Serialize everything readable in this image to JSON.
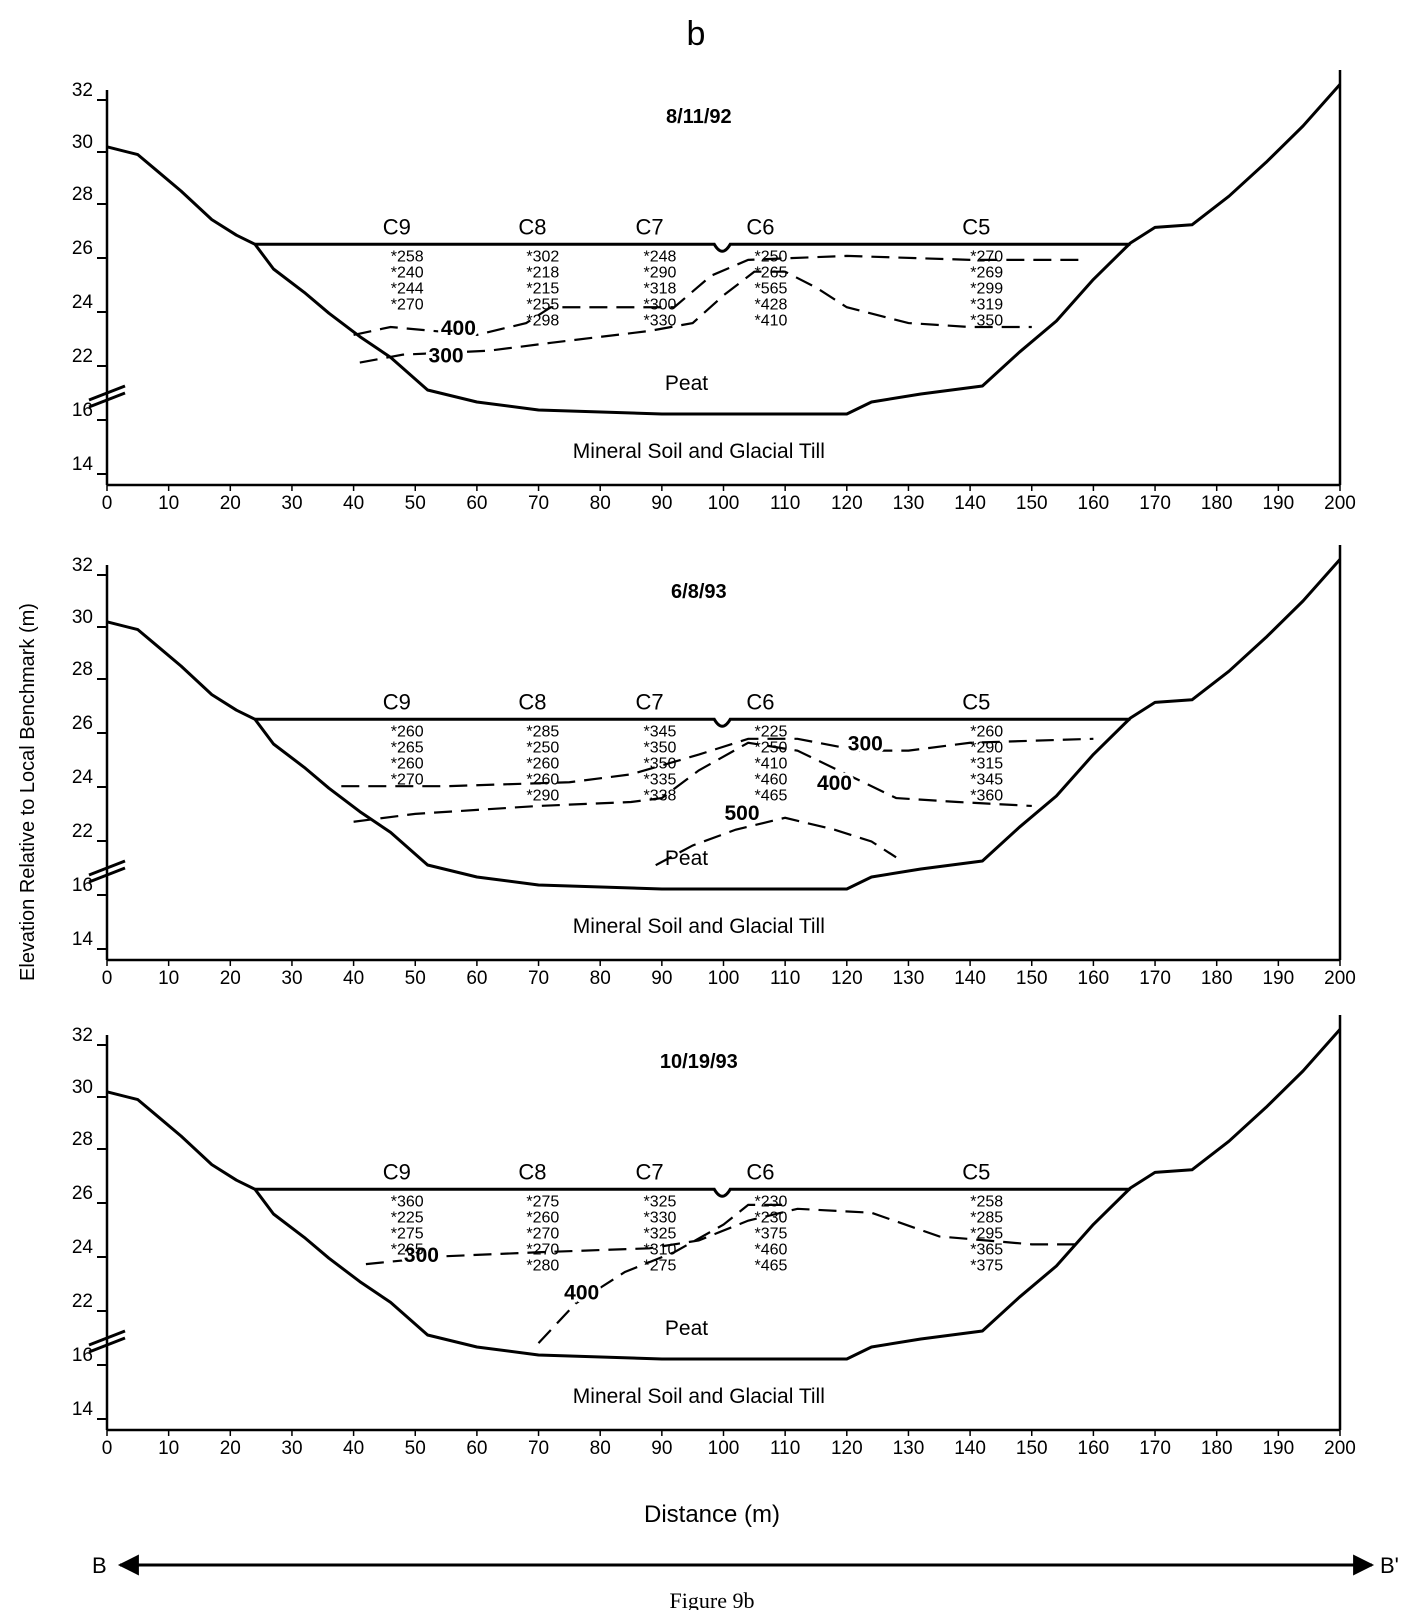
{
  "panel_letter": "b",
  "y_axis_label": "Elevation Relative to Local Benchmark (m)",
  "x_axis_label": "Distance (m)",
  "x_ticks": [
    "0",
    "10",
    "20",
    "30",
    "40",
    "50",
    "60",
    "70",
    "80",
    "90",
    "100",
    "110",
    "120",
    "130",
    "140",
    "150",
    "160",
    "170",
    "180",
    "190",
    "200"
  ],
  "y_ticks": [
    "32",
    "30",
    "28",
    "26",
    "24",
    "22",
    "16",
    "14"
  ],
  "peat_label": "Peat",
  "mineral_label": "Mineral Soil and Glacial Till",
  "arrow": {
    "left": "B",
    "right": "B'"
  },
  "caption": "Figure 9b",
  "colors": {
    "ink": "#000000",
    "paper": "#ffffff"
  },
  "chart_data": [
    {
      "type": "table",
      "date": "8/11/92",
      "wells": [
        {
          "name": "C9",
          "x": 47,
          "values": [
            "258",
            "240",
            "244",
            "270"
          ]
        },
        {
          "name": "C8",
          "x": 69,
          "values": [
            "302",
            "218",
            "215",
            "255",
            "298"
          ]
        },
        {
          "name": "C7",
          "x": 88,
          "values": [
            "248",
            "290",
            "318",
            "300",
            "330"
          ]
        },
        {
          "name": "C6",
          "x": 106,
          "values": [
            "250",
            "265",
            "565",
            "428",
            "410"
          ]
        },
        {
          "name": "C5",
          "x": 141,
          "values": [
            "270",
            "269",
            "299",
            "319",
            "350"
          ]
        }
      ],
      "contours": [
        "300",
        "400"
      ]
    },
    {
      "type": "table",
      "date": "6/8/93",
      "wells": [
        {
          "name": "C9",
          "x": 47,
          "values": [
            "260",
            "265",
            "260",
            "270"
          ]
        },
        {
          "name": "C8",
          "x": 69,
          "values": [
            "285",
            "250",
            "260",
            "260",
            "290"
          ]
        },
        {
          "name": "C7",
          "x": 88,
          "values": [
            "345",
            "350",
            "350",
            "335",
            "338"
          ]
        },
        {
          "name": "C6",
          "x": 106,
          "values": [
            "225",
            "250",
            "410",
            "460",
            "465"
          ]
        },
        {
          "name": "C5",
          "x": 141,
          "values": [
            "260",
            "290",
            "315",
            "345",
            "360"
          ]
        }
      ],
      "contours": [
        "300",
        "400",
        "500"
      ]
    },
    {
      "type": "table",
      "date": "10/19/93",
      "wells": [
        {
          "name": "C9",
          "x": 47,
          "values": [
            "360",
            "225",
            "275",
            "265"
          ]
        },
        {
          "name": "C8",
          "x": 69,
          "values": [
            "275",
            "260",
            "270",
            "270",
            "280"
          ]
        },
        {
          "name": "C7",
          "x": 88,
          "values": [
            "325",
            "330",
            "325",
            "310",
            "275"
          ]
        },
        {
          "name": "C6",
          "x": 106,
          "values": [
            "230",
            "230",
            "375",
            "460",
            "465"
          ]
        },
        {
          "name": "C5",
          "x": 141,
          "values": [
            "258",
            "285",
            "295",
            "365",
            "375"
          ]
        }
      ],
      "contours": [
        "300",
        "400"
      ]
    }
  ]
}
